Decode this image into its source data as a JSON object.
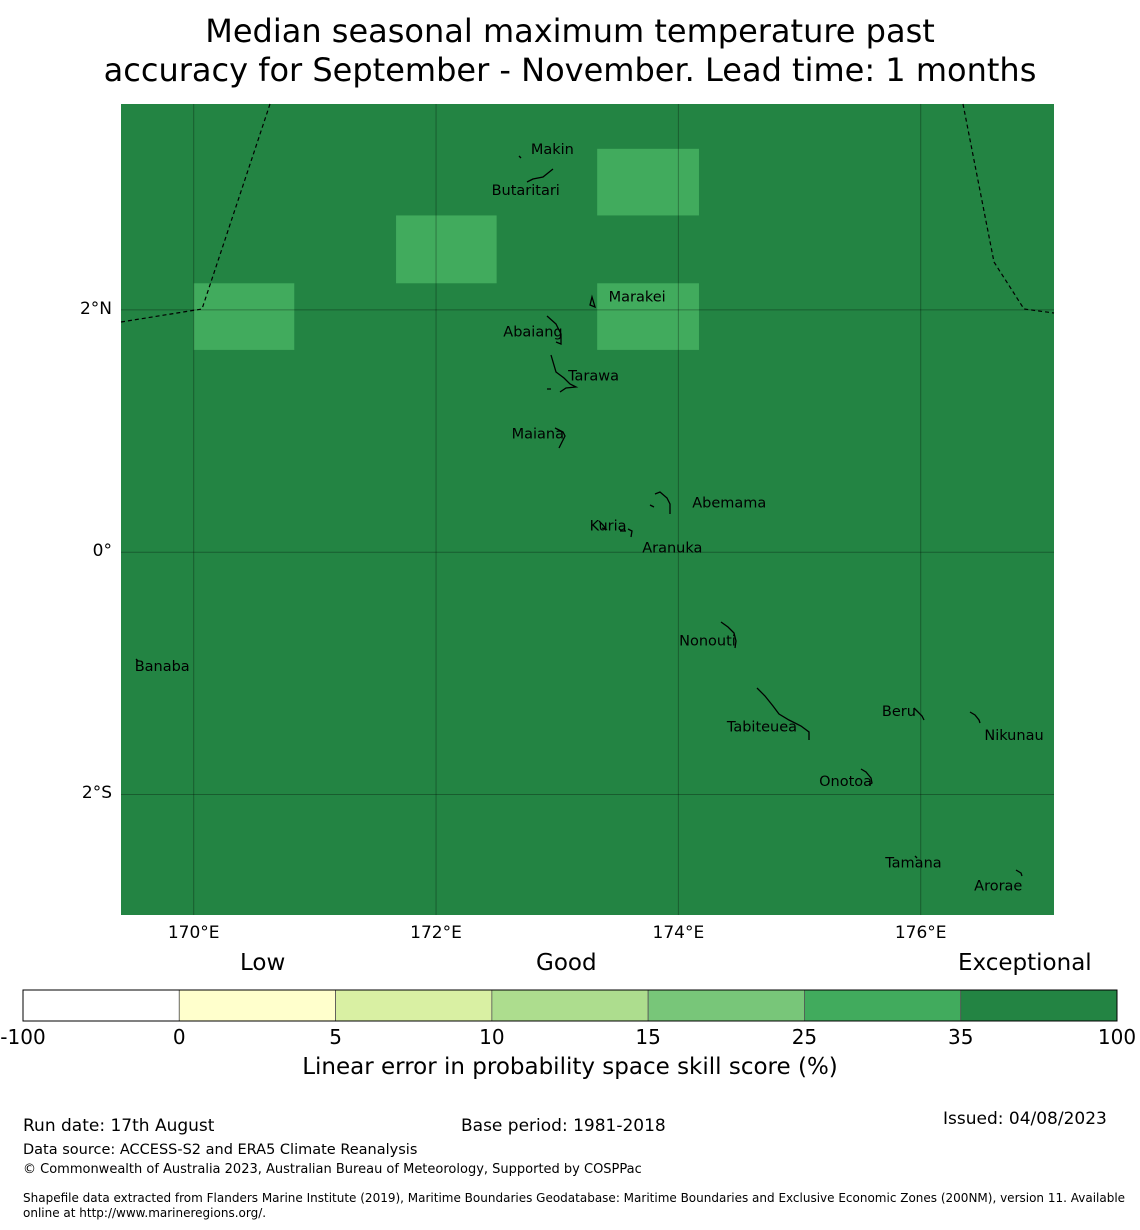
{
  "title": {
    "line1": "Median seasonal maximum temperature past",
    "line2": "accuracy for September - November. Lead time: 1 months"
  },
  "map": {
    "bounds": {
      "lon_min": 169.4,
      "lon_max": 177.1,
      "lat_min": -2.995,
      "lat_max": 3.7
    },
    "background_color": "#238443",
    "lat_labels": [
      {
        "lat": 2,
        "text": "2°N"
      },
      {
        "lat": 0,
        "text": "0°"
      },
      {
        "lat": -2,
        "text": "2°S"
      }
    ],
    "lon_labels": [
      {
        "lon": 170,
        "text": "170°E"
      },
      {
        "lon": 172,
        "text": "172°E"
      },
      {
        "lon": 174,
        "text": "174°E"
      },
      {
        "lon": 176,
        "text": "176°E"
      }
    ],
    "skill_cells": [
      {
        "lon0": 170.0,
        "lon1": 170.83,
        "lat0": 1.67,
        "lat1": 2.22,
        "color": "#41ab5d"
      },
      {
        "lon0": 171.67,
        "lon1": 172.5,
        "lat0": 2.22,
        "lat1": 2.78,
        "color": "#41ab5d"
      },
      {
        "lon0": 173.33,
        "lon1": 174.17,
        "lat0": 2.78,
        "lat1": 3.33,
        "color": "#41ab5d"
      },
      {
        "lon0": 173.33,
        "lon1": 174.17,
        "lat0": 1.67,
        "lat1": 2.22,
        "color": "#41ab5d"
      }
    ],
    "islands": [
      {
        "name": "Makin",
        "lon": 172.96,
        "lat": 3.33
      },
      {
        "name": "Butaritari",
        "lon": 172.74,
        "lat": 2.99
      },
      {
        "name": "Marakei",
        "lon": 173.66,
        "lat": 2.11
      },
      {
        "name": "Abaiang",
        "lon": 172.8,
        "lat": 1.82
      },
      {
        "name": "Tarawa",
        "lon": 173.3,
        "lat": 1.46
      },
      {
        "name": "Maiana",
        "lon": 172.84,
        "lat": 0.98
      },
      {
        "name": "Abemama",
        "lon": 174.42,
        "lat": 0.41
      },
      {
        "name": "Kuria",
        "lon": 173.42,
        "lat": 0.22
      },
      {
        "name": "Aranuka",
        "lon": 173.95,
        "lat": 0.04
      },
      {
        "name": "Nonouti",
        "lon": 174.24,
        "lat": -0.73
      },
      {
        "name": "Banaba",
        "lon": 169.74,
        "lat": -0.94
      },
      {
        "name": "Beru",
        "lon": 175.82,
        "lat": -1.31
      },
      {
        "name": "Nikunau",
        "lon": 176.77,
        "lat": -1.51
      },
      {
        "name": "Tabiteuea",
        "lon": 174.69,
        "lat": -1.44
      },
      {
        "name": "Onotoa",
        "lon": 175.38,
        "lat": -1.89
      },
      {
        "name": "Tamana",
        "lon": 175.94,
        "lat": -2.56
      },
      {
        "name": "Arorae",
        "lon": 176.64,
        "lat": -2.75
      }
    ]
  },
  "colorbar": {
    "category_labels": [
      "Low",
      "Good",
      "Exceptional"
    ],
    "bins": [
      {
        "from": -100,
        "to": 0,
        "color": "#ffffff"
      },
      {
        "from": 0,
        "to": 5,
        "color": "#ffffcc"
      },
      {
        "from": 5,
        "to": 10,
        "color": "#d9f0a3"
      },
      {
        "from": 10,
        "to": 15,
        "color": "#addd8e"
      },
      {
        "from": 15,
        "to": 25,
        "color": "#78c679"
      },
      {
        "from": 25,
        "to": 35,
        "color": "#41ab5d"
      },
      {
        "from": 35,
        "to": 100,
        "color": "#238443"
      }
    ],
    "tick_labels": [
      "-100",
      "0",
      "5",
      "10",
      "15",
      "25",
      "35",
      "100"
    ],
    "label": "Linear error in probability space skill score (%)"
  },
  "footer": {
    "run_date": "Run date: 17th August",
    "base_period": "Base period: 1981-2018",
    "issued": "Issued: 04/08/2023",
    "data_source": "Data source: ACCESS-S2 and ERA5 Climate Reanalysis",
    "copyright": "© Commonwealth of Australia 2023, Australian Bureau of Meteorology, Supported by COSPPac",
    "shapefile_line1": "Shapefile data extracted from Flanders Marine Institute (2019), Maritime Boundaries Geodatabase: Maritime Boundaries and Exclusive Economic Zones (200NM), version 11. Available",
    "shapefile_line2": "online at http://www.marineregions.org/."
  }
}
